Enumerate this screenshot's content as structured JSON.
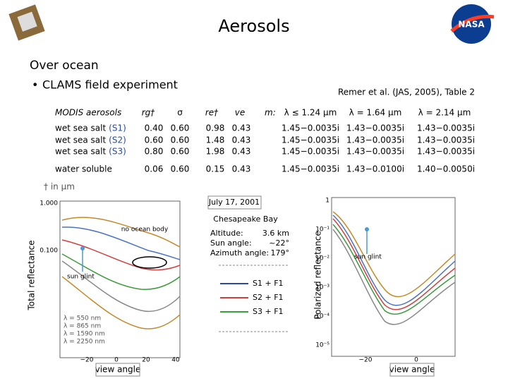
{
  "header": {
    "title": "Aerosols"
  },
  "section": "Over ocean",
  "bullet": "CLAMS field experiment",
  "citation": "Remer et al. (JAS, 2005), Table 2",
  "table": {
    "header": [
      "MODIS aerosols",
      "rg†",
      "σ",
      "re†",
      "ve",
      "m:",
      "λ ≤ 1.24 μm",
      "λ = 1.64 μm",
      "λ = 2.14 μm"
    ],
    "rows": [
      {
        "name": "wet sea salt",
        "tag": "(S1)",
        "cells": [
          "0.40",
          "0.60",
          "0.98",
          "0.43",
          "1.45−0.0035i",
          "1.43−0.0035i",
          "1.43−0.0035i"
        ]
      },
      {
        "name": "wet sea salt",
        "tag": "(S2)",
        "cells": [
          "0.60",
          "0.60",
          "1.48",
          "0.43",
          "1.45−0.0035i",
          "1.43−0.0035i",
          "1.43−0.0035i"
        ]
      },
      {
        "name": "wet sea salt",
        "tag": "(S3)",
        "cells": [
          "0.80",
          "0.60",
          "1.98",
          "0.43",
          "1.45−0.0035i",
          "1.43−0.0035i",
          "1.43−0.0035i"
        ]
      },
      {
        "name": "water soluble",
        "cells": [
          "0.06",
          "0.60",
          "0.15",
          "0.43",
          "1.45−0.0035i",
          "1.43−0.0100i",
          "1.40−0.0050i"
        ]
      }
    ]
  },
  "footnote": "† in μm",
  "left_plot": {
    "y_label": "Total reflectance",
    "x_label": "view angle",
    "yticks": [
      "1.000",
      "0.100"
    ],
    "xticks": [
      "−20",
      "0",
      "20",
      "40"
    ],
    "annotations": [
      "no ocean body",
      "sun glint"
    ],
    "legend": [
      "λ = 550 nm",
      "λ = 865 nm",
      "λ = 1590 nm",
      "λ = 2250 nm"
    ]
  },
  "info": {
    "date": "July 17, 2001",
    "place": "Chesapeake Bay",
    "rows": [
      [
        "Altitude:",
        "3.6 km"
      ],
      [
        "Sun angle:",
        "~22°"
      ],
      [
        "Azimuth angle:",
        "179°"
      ]
    ],
    "legend": [
      "S1 + F1",
      "S2 + F1",
      "S3 + F1"
    ]
  },
  "right_plot": {
    "y_label": "Polarized reflectance",
    "x_label": "view angle",
    "yticks": [
      "1",
      "10⁻¹",
      "10⁻²",
      "10⁻³",
      "10⁻⁴",
      "10⁻⁵"
    ],
    "xticks": [
      "−20",
      "0"
    ],
    "annotation": "sun glint"
  }
}
